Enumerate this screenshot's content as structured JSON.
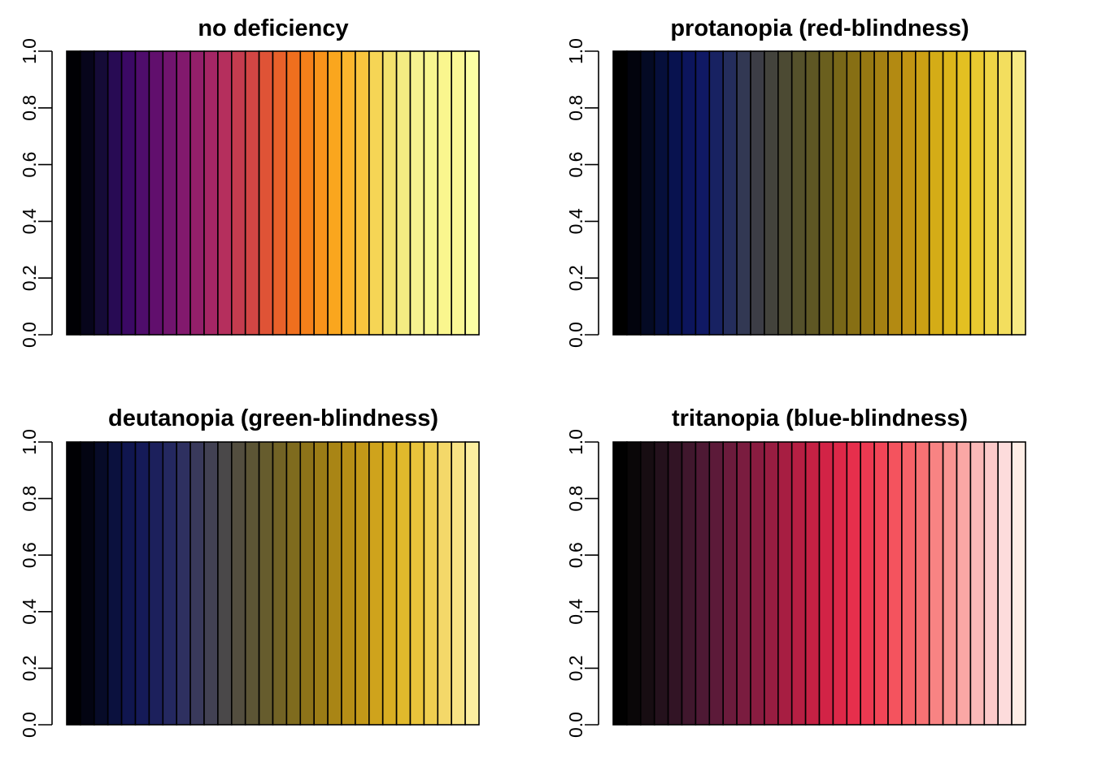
{
  "chart_data": [
    {
      "type": "bar",
      "title": "no deficiency",
      "ylim": [
        0,
        1
      ],
      "yticks": [
        "0.0",
        "0.2",
        "0.4",
        "0.6",
        "0.8",
        "1.0"
      ],
      "values": [
        1,
        1,
        1,
        1,
        1,
        1,
        1,
        1,
        1,
        1,
        1,
        1,
        1,
        1,
        1,
        1,
        1,
        1,
        1,
        1,
        1,
        1,
        1,
        1,
        1,
        1,
        1,
        1,
        1,
        1
      ],
      "colors": [
        "#000004",
        "#07051B",
        "#150B37",
        "#280B54",
        "#3B0964",
        "#4F0D6C",
        "#610F6D",
        "#71146E",
        "#82196D",
        "#931F6A",
        "#A52665",
        "#B52F5D",
        "#C43C4F",
        "#D24644",
        "#DF5336",
        "#E8612A",
        "#EF6F1E",
        "#F4801A",
        "#F8931A",
        "#FAA61E",
        "#FBB62D",
        "#FAC53E",
        "#F6D555",
        "#F3E26D",
        "#F3EC82",
        "#F6F290",
        "#F8F58F",
        "#FAF68E",
        "#FBF895",
        "#FCFFA4"
      ]
    },
    {
      "type": "bar",
      "title": "protanopia (red-blindness)",
      "ylim": [
        0,
        1
      ],
      "yticks": [
        "0.0",
        "0.2",
        "0.4",
        "0.6",
        "0.8",
        "1.0"
      ],
      "values": [
        1,
        1,
        1,
        1,
        1,
        1,
        1,
        1,
        1,
        1,
        1,
        1,
        1,
        1,
        1,
        1,
        1,
        1,
        1,
        1,
        1,
        1,
        1,
        1,
        1,
        1,
        1,
        1,
        1,
        1
      ],
      "colors": [
        "#000000",
        "#02030D",
        "#040A24",
        "#060F3B",
        "#08124F",
        "#0C155C",
        "#101964",
        "#182262",
        "#242D5C",
        "#323853",
        "#3C3D46",
        "#43433C",
        "#4C4A33",
        "#55512B",
        "#5E5724",
        "#6A5F1E",
        "#786718",
        "#876F14",
        "#967812",
        "#A48012",
        "#B38A12",
        "#C19413",
        "#CCA014",
        "#D4AC17",
        "#DCB61B",
        "#E3C022",
        "#EACA30",
        "#EFD545",
        "#F3DE5E",
        "#F7EA84"
      ]
    },
    {
      "type": "bar",
      "title": "deutanopia (green-blindness)",
      "ylim": [
        0,
        1
      ],
      "yticks": [
        "0.0",
        "0.2",
        "0.4",
        "0.6",
        "0.8",
        "1.0"
      ],
      "values": [
        1,
        1,
        1,
        1,
        1,
        1,
        1,
        1,
        1,
        1,
        1,
        1,
        1,
        1,
        1,
        1,
        1,
        1,
        1,
        1,
        1,
        1,
        1,
        1,
        1,
        1,
        1,
        1,
        1,
        1
      ],
      "colors": [
        "#000003",
        "#030412",
        "#070B28",
        "#0B113E",
        "#10164F",
        "#151A58",
        "#1C205C",
        "#242860",
        "#2E3060",
        "#39395B",
        "#424153",
        "#4A4849",
        "#534E3F",
        "#5C5535",
        "#665C2D",
        "#726325",
        "#7F6B1E",
        "#8D7319",
        "#9B7C16",
        "#A98515",
        "#B68E16",
        "#C39818",
        "#CFA31C",
        "#D9AE22",
        "#E1B92C",
        "#E9C43B",
        "#EFCE50",
        "#F4D869",
        "#F8E384",
        "#FCEE9F"
      ]
    },
    {
      "type": "bar",
      "title": "tritanopia (blue-blindness)",
      "ylim": [
        0,
        1
      ],
      "yticks": [
        "0.0",
        "0.2",
        "0.4",
        "0.6",
        "0.8",
        "1.0"
      ],
      "values": [
        1,
        1,
        1,
        1,
        1,
        1,
        1,
        1,
        1,
        1,
        1,
        1,
        1,
        1,
        1,
        1,
        1,
        1,
        1,
        1,
        1,
        1,
        1,
        1,
        1,
        1,
        1,
        1,
        1,
        1
      ],
      "colors": [
        "#010101",
        "#0A0708",
        "#170D12",
        "#24111C",
        "#321425",
        "#40172D",
        "#4E1934",
        "#5C1A39",
        "#6B1B3C",
        "#7A1C3F",
        "#891C40",
        "#981D41",
        "#A71E42",
        "#B61F43",
        "#C52144",
        "#D22346",
        "#DD2848",
        "#E62F4C",
        "#EC3951",
        "#F14557",
        "#F4535E",
        "#F66268",
        "#F77274",
        "#F88383",
        "#F99593",
        "#FAA7A5",
        "#FBB9B8",
        "#FCCACA",
        "#FDDCDC",
        "#FEEDE6"
      ]
    }
  ]
}
